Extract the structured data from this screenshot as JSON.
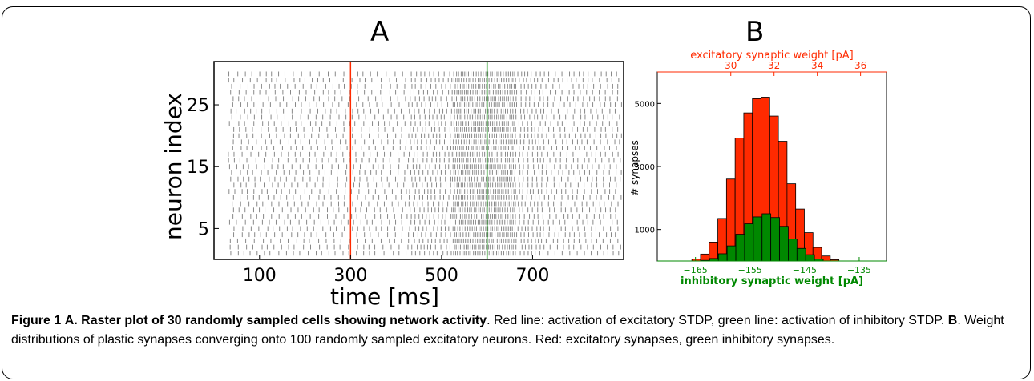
{
  "panels": {
    "a_label": "A",
    "b_label": "B"
  },
  "caption": {
    "fig_label": "Figure 1",
    "a_letter": "A.",
    "a_title": "Raster plot of 30 randomly sampled cells showing network activity",
    "a_text": ". Red line: activation of excitatory STDP, green line: activation of inhibitory STDP. ",
    "b_letter": "B",
    "b_text": ". Weight distributions of plastic synapses converging onto 100 randomly sampled excitatory neurons. Red: excitatory synapses, green inhibitory synapses."
  },
  "colors": {
    "red": "#ff2a00",
    "green": "#008800",
    "raster": "#888888"
  },
  "chart_data": [
    {
      "type": "scatter",
      "panel": "A",
      "xlabel": "time [ms]",
      "ylabel": "neuron index",
      "xlim": [
        0,
        900
      ],
      "ylim": [
        0,
        32
      ],
      "xticks": [
        100,
        300,
        500,
        700
      ],
      "yticks": [
        5,
        15,
        25
      ],
      "neurons": 30,
      "vlines": [
        {
          "x": 300,
          "color": "red"
        },
        {
          "x": 600,
          "color": "green"
        }
      ],
      "spike_isi_ms": [
        {
          "from": 30,
          "to": 420,
          "isi": 16
        },
        {
          "from": 420,
          "to": 520,
          "isi": 10
        },
        {
          "from": 520,
          "to": 660,
          "isi": 5
        },
        {
          "from": 660,
          "to": 720,
          "isi": 9
        },
        {
          "from": 720,
          "to": 900,
          "isi": 13
        }
      ]
    },
    {
      "type": "bar",
      "panel": "B",
      "ylabel": "# synapses",
      "yticks": [
        1000,
        3000,
        5000
      ],
      "ylim": [
        0,
        6000
      ],
      "series": [
        {
          "name": "excitatory synaptic weight [pA]",
          "axis": "top",
          "xlim": [
            26.6,
            37.2
          ],
          "xticks": [
            30,
            32,
            34,
            36
          ],
          "bin_width": 0.4,
          "bin_start": 28.2,
          "values": [
            60,
            220,
            600,
            1350,
            2600,
            3900,
            4700,
            5150,
            5200,
            4600,
            3800,
            2450,
            1650,
            900,
            430,
            160,
            40
          ]
        },
        {
          "name": "inhibitory synaptic weight [pA]",
          "axis": "bottom",
          "xlim": [
            -172,
            -130
          ],
          "xticks": [
            -165,
            -155,
            -145,
            -135
          ],
          "bin_width": 1.6,
          "bin_start": -164.0,
          "values": [
            20,
            80,
            230,
            480,
            850,
            1180,
            1400,
            1500,
            1380,
            1100,
            700,
            400,
            200,
            60
          ]
        }
      ]
    }
  ]
}
